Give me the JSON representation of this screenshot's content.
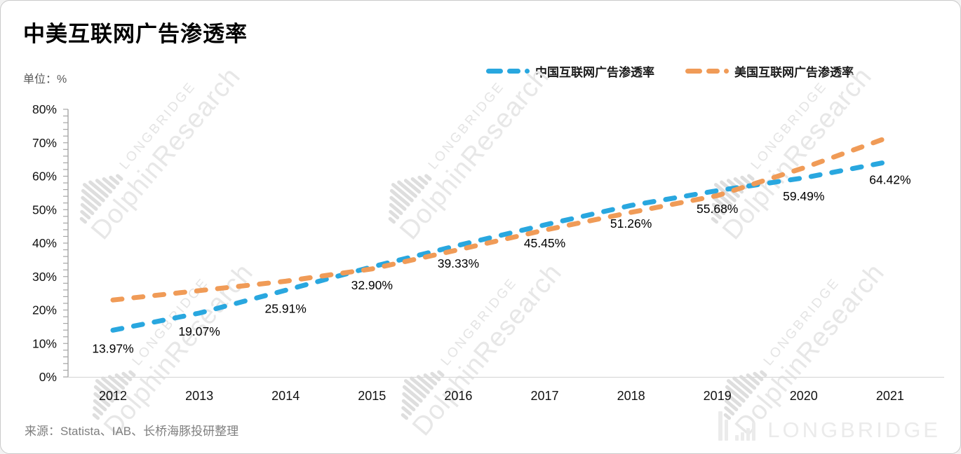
{
  "page": {
    "title": "中美互联网广告渗透率",
    "unit_label": "单位：%",
    "source": "来源：Statista、IAB、长桥海豚投研整理"
  },
  "watermark": {
    "brand": "LONGBRIDGE",
    "research": "DolphinResearch"
  },
  "footer_logo": {
    "text": "LONGBRIDGE"
  },
  "chart_data": {
    "type": "line",
    "title": "中美互联网广告渗透率",
    "unit": "%",
    "line_style": "dashed",
    "grid": false,
    "legend_position": "top-right",
    "categories": [
      "2012",
      "2013",
      "2014",
      "2015",
      "2016",
      "2017",
      "2018",
      "2019",
      "2020",
      "2021"
    ],
    "series": [
      {
        "key": "china",
        "name": "中国互联网广告渗透率",
        "color": "#29A7DF",
        "values": [
          13.97,
          19.07,
          25.91,
          32.9,
          39.33,
          45.45,
          51.26,
          55.68,
          59.49,
          64.42
        ],
        "point_labels": [
          "13.97%",
          "19.07%",
          "25.91%",
          "32.90%",
          "39.33%",
          "45.45%",
          "51.26%",
          "55.68%",
          "59.49%",
          "64.42%"
        ]
      },
      {
        "key": "us",
        "name": "美国互联网广告渗透率",
        "color": "#F09B57",
        "values": [
          23.0,
          25.8,
          28.6,
          32.3,
          38.0,
          43.9,
          49.2,
          54.2,
          62.5,
          71.8
        ],
        "point_labels": []
      }
    ],
    "ylim": [
      0,
      80
    ],
    "ytick_major": 10,
    "ytick_minor": 2,
    "ytick_labels": [
      "0%",
      "10%",
      "20%",
      "30%",
      "40%",
      "50%",
      "60%",
      "70%",
      "80%"
    ]
  }
}
